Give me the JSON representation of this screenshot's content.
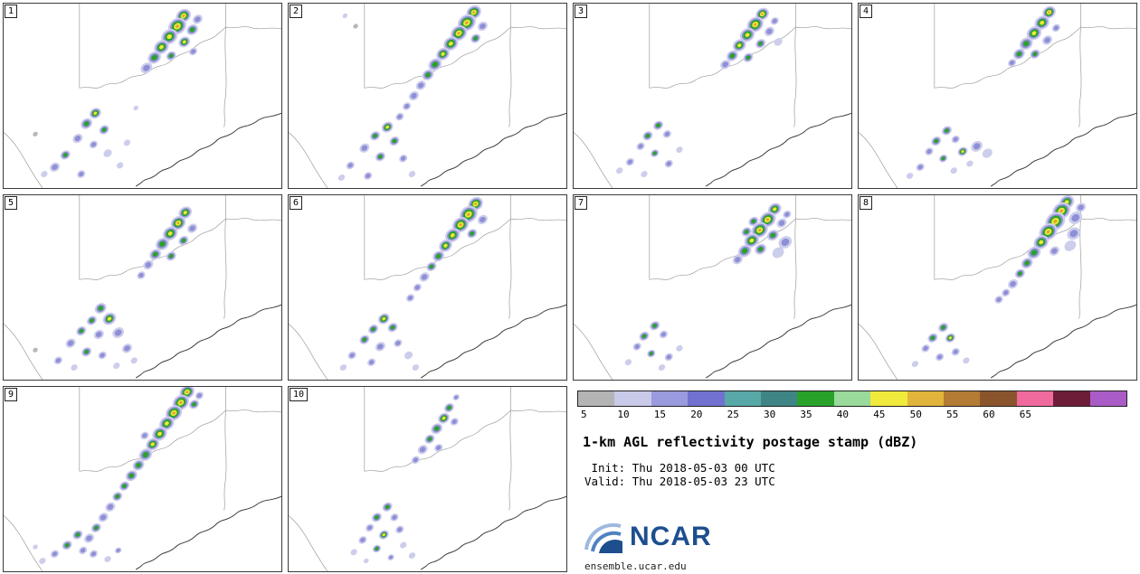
{
  "legend": {
    "title": "1-km AGL reflectivity postage stamp (dBZ)",
    "init_line": " Init: Thu 2018-05-03 00 UTC",
    "valid_line": "Valid: Thu 2018-05-03 23 UTC",
    "logo_text": "NCAR",
    "site_url": "ensemble.ucar.edu",
    "colorbar": {
      "units": "dBZ",
      "tick_labels": [
        "5",
        "10",
        "15",
        "20",
        "25",
        "30",
        "35",
        "40",
        "45",
        "50",
        "55",
        "60",
        "65"
      ],
      "colors": [
        "#b4b4b4",
        "#c9c9e9",
        "#9a9ade",
        "#7171d1",
        "#58a8a8",
        "#408585",
        "#2aa22a",
        "#9ada9a",
        "#f0ea3d",
        "#e1b43b",
        "#b37b33",
        "#8a552c",
        "#f06a9e",
        "#6e1d38",
        "#aa5cc6"
      ]
    }
  },
  "map": {
    "state_line_color": "#9a9a9a",
    "coast_color": "#3a3a3a",
    "cell_ramp": {
      "0": [
        "#b8b8b8"
      ],
      "1": [
        "#cdcdec"
      ],
      "2": [
        "#cdcdec",
        "#8f8fd8"
      ],
      "3": [
        "#cdcdec",
        "#8f8fd8",
        "#2aa22a"
      ],
      "4": [
        "#cdcdec",
        "#8f8fd8",
        "#2aa22a",
        "#eee63c"
      ],
      "5": [
        "#cdcdec",
        "#8f8fd8",
        "#2aa22a",
        "#eee63c",
        "#dfa43a"
      ]
    }
  },
  "panels": [
    {
      "id": "1",
      "cells": [
        [
          204,
          14,
          9,
          5
        ],
        [
          197,
          26,
          11,
          5
        ],
        [
          188,
          38,
          10,
          4
        ],
        [
          179,
          50,
          9,
          4
        ],
        [
          171,
          62,
          8,
          3
        ],
        [
          190,
          60,
          6,
          3
        ],
        [
          205,
          44,
          7,
          4
        ],
        [
          214,
          30,
          7,
          3
        ],
        [
          220,
          18,
          6,
          2
        ],
        [
          162,
          74,
          7,
          2
        ],
        [
          215,
          55,
          5,
          2
        ],
        [
          104,
          126,
          7,
          4
        ],
        [
          94,
          138,
          7,
          3
        ],
        [
          114,
          145,
          6,
          3
        ],
        [
          84,
          155,
          6,
          2
        ],
        [
          102,
          162,
          5,
          2
        ],
        [
          70,
          174,
          6,
          3
        ],
        [
          58,
          188,
          6,
          2
        ],
        [
          118,
          172,
          5,
          1
        ],
        [
          132,
          186,
          4,
          1
        ],
        [
          46,
          196,
          4,
          1
        ],
        [
          88,
          196,
          5,
          2
        ],
        [
          140,
          160,
          4,
          1
        ],
        [
          36,
          150,
          3,
          0
        ],
        [
          150,
          120,
          3,
          1
        ]
      ]
    },
    {
      "id": "2",
      "cells": [
        [
          210,
          10,
          9,
          5
        ],
        [
          202,
          22,
          11,
          5
        ],
        [
          193,
          34,
          10,
          5
        ],
        [
          184,
          46,
          9,
          4
        ],
        [
          175,
          58,
          8,
          4
        ],
        [
          166,
          70,
          8,
          3
        ],
        [
          158,
          82,
          7,
          3
        ],
        [
          150,
          94,
          6,
          2
        ],
        [
          142,
          106,
          6,
          2
        ],
        [
          134,
          118,
          5,
          2
        ],
        [
          126,
          130,
          5,
          2
        ],
        [
          212,
          40,
          6,
          3
        ],
        [
          220,
          26,
          6,
          2
        ],
        [
          112,
          142,
          7,
          4
        ],
        [
          98,
          152,
          6,
          3
        ],
        [
          120,
          158,
          6,
          3
        ],
        [
          86,
          166,
          6,
          2
        ],
        [
          104,
          176,
          6,
          3
        ],
        [
          70,
          186,
          5,
          2
        ],
        [
          130,
          178,
          5,
          2
        ],
        [
          90,
          198,
          5,
          2
        ],
        [
          140,
          196,
          4,
          1
        ],
        [
          60,
          200,
          4,
          1
        ],
        [
          64,
          14,
          3,
          1
        ],
        [
          76,
          26,
          3,
          0
        ]
      ]
    },
    {
      "id": "3",
      "cells": [
        [
          214,
          12,
          8,
          5
        ],
        [
          206,
          24,
          10,
          5
        ],
        [
          197,
          36,
          9,
          4
        ],
        [
          188,
          48,
          8,
          4
        ],
        [
          180,
          60,
          7,
          3
        ],
        [
          198,
          62,
          6,
          3
        ],
        [
          212,
          46,
          6,
          3
        ],
        [
          222,
          32,
          6,
          2
        ],
        [
          228,
          20,
          5,
          2
        ],
        [
          172,
          70,
          6,
          2
        ],
        [
          232,
          44,
          5,
          1
        ],
        [
          96,
          140,
          6,
          3
        ],
        [
          84,
          152,
          6,
          3
        ],
        [
          106,
          150,
          5,
          2
        ],
        [
          76,
          164,
          5,
          2
        ],
        [
          92,
          172,
          5,
          3
        ],
        [
          64,
          182,
          5,
          2
        ],
        [
          108,
          184,
          5,
          2
        ],
        [
          80,
          196,
          4,
          1
        ],
        [
          120,
          168,
          4,
          1
        ],
        [
          52,
          192,
          4,
          1
        ]
      ]
    },
    {
      "id": "4",
      "cells": [
        [
          216,
          10,
          8,
          5
        ],
        [
          208,
          22,
          9,
          4
        ],
        [
          199,
          34,
          9,
          4
        ],
        [
          190,
          46,
          8,
          3
        ],
        [
          182,
          58,
          7,
          3
        ],
        [
          200,
          58,
          6,
          3
        ],
        [
          214,
          42,
          6,
          2
        ],
        [
          224,
          28,
          5,
          2
        ],
        [
          174,
          68,
          5,
          2
        ],
        [
          100,
          146,
          6,
          3
        ],
        [
          88,
          158,
          6,
          3
        ],
        [
          110,
          156,
          5,
          2
        ],
        [
          80,
          170,
          5,
          2
        ],
        [
          96,
          178,
          5,
          3
        ],
        [
          118,
          170,
          6,
          4
        ],
        [
          134,
          164,
          7,
          2
        ],
        [
          146,
          172,
          6,
          1
        ],
        [
          70,
          188,
          5,
          2
        ],
        [
          108,
          192,
          4,
          1
        ],
        [
          126,
          184,
          4,
          1
        ],
        [
          58,
          198,
          4,
          1
        ]
      ]
    },
    {
      "id": "5",
      "cells": [
        [
          206,
          20,
          8,
          4
        ],
        [
          198,
          32,
          9,
          5
        ],
        [
          189,
          44,
          9,
          4
        ],
        [
          180,
          56,
          8,
          3
        ],
        [
          172,
          68,
          7,
          3
        ],
        [
          190,
          70,
          6,
          3
        ],
        [
          204,
          52,
          6,
          3
        ],
        [
          214,
          38,
          6,
          2
        ],
        [
          164,
          80,
          6,
          2
        ],
        [
          156,
          92,
          5,
          2
        ],
        [
          110,
          130,
          7,
          3
        ],
        [
          120,
          142,
          8,
          4
        ],
        [
          100,
          144,
          6,
          3
        ],
        [
          88,
          156,
          6,
          3
        ],
        [
          108,
          160,
          6,
          2
        ],
        [
          130,
          158,
          7,
          2
        ],
        [
          76,
          170,
          6,
          2
        ],
        [
          94,
          180,
          6,
          3
        ],
        [
          112,
          184,
          5,
          2
        ],
        [
          140,
          176,
          6,
          2
        ],
        [
          62,
          190,
          5,
          2
        ],
        [
          80,
          198,
          4,
          1
        ],
        [
          128,
          196,
          4,
          1
        ],
        [
          148,
          190,
          4,
          1
        ],
        [
          36,
          178,
          3,
          0
        ]
      ]
    },
    {
      "id": "6",
      "cells": [
        [
          212,
          10,
          9,
          5
        ],
        [
          204,
          22,
          11,
          5
        ],
        [
          195,
          34,
          10,
          5
        ],
        [
          186,
          46,
          9,
          4
        ],
        [
          178,
          58,
          8,
          4
        ],
        [
          170,
          70,
          7,
          3
        ],
        [
          162,
          82,
          6,
          3
        ],
        [
          154,
          94,
          6,
          2
        ],
        [
          146,
          106,
          5,
          2
        ],
        [
          208,
          44,
          6,
          3
        ],
        [
          220,
          28,
          6,
          2
        ],
        [
          138,
          118,
          5,
          2
        ],
        [
          108,
          142,
          7,
          4
        ],
        [
          96,
          154,
          6,
          3
        ],
        [
          118,
          152,
          6,
          3
        ],
        [
          86,
          166,
          6,
          3
        ],
        [
          104,
          174,
          6,
          2
        ],
        [
          124,
          170,
          5,
          2
        ],
        [
          72,
          184,
          5,
          2
        ],
        [
          94,
          192,
          5,
          2
        ],
        [
          136,
          184,
          5,
          1
        ],
        [
          62,
          198,
          4,
          1
        ],
        [
          144,
          198,
          4,
          1
        ]
      ]
    },
    {
      "id": "7",
      "cells": [
        [
          228,
          16,
          8,
          4
        ],
        [
          220,
          28,
          10,
          5
        ],
        [
          211,
          40,
          10,
          5
        ],
        [
          202,
          52,
          9,
          4
        ],
        [
          194,
          64,
          8,
          3
        ],
        [
          212,
          62,
          7,
          3
        ],
        [
          226,
          46,
          7,
          3
        ],
        [
          236,
          32,
          6,
          2
        ],
        [
          186,
          74,
          6,
          2
        ],
        [
          242,
          22,
          5,
          2
        ],
        [
          204,
          30,
          6,
          3
        ],
        [
          196,
          42,
          6,
          3
        ],
        [
          240,
          54,
          8,
          2
        ],
        [
          232,
          66,
          7,
          1
        ],
        [
          92,
          150,
          6,
          3
        ],
        [
          80,
          162,
          6,
          3
        ],
        [
          102,
          160,
          5,
          2
        ],
        [
          72,
          174,
          5,
          2
        ],
        [
          88,
          182,
          5,
          3
        ],
        [
          108,
          186,
          5,
          2
        ],
        [
          62,
          192,
          4,
          1
        ],
        [
          120,
          176,
          4,
          1
        ],
        [
          100,
          198,
          4,
          1
        ]
      ]
    },
    {
      "id": "8",
      "cells": [
        [
          236,
          8,
          9,
          4
        ],
        [
          230,
          18,
          11,
          5
        ],
        [
          223,
          30,
          12,
          5
        ],
        [
          215,
          42,
          11,
          5
        ],
        [
          207,
          54,
          9,
          4
        ],
        [
          199,
          66,
          8,
          3
        ],
        [
          191,
          78,
          7,
          3
        ],
        [
          183,
          90,
          6,
          3
        ],
        [
          175,
          102,
          6,
          2
        ],
        [
          167,
          112,
          5,
          2
        ],
        [
          159,
          120,
          5,
          2
        ],
        [
          246,
          26,
          8,
          2
        ],
        [
          244,
          44,
          8,
          2
        ],
        [
          240,
          58,
          7,
          1
        ],
        [
          222,
          64,
          6,
          2
        ],
        [
          252,
          14,
          6,
          2
        ],
        [
          96,
          152,
          6,
          3
        ],
        [
          84,
          164,
          6,
          3
        ],
        [
          104,
          164,
          6,
          4
        ],
        [
          76,
          176,
          5,
          2
        ],
        [
          92,
          186,
          5,
          2
        ],
        [
          110,
          180,
          5,
          2
        ],
        [
          64,
          194,
          4,
          1
        ],
        [
          122,
          190,
          4,
          1
        ]
      ]
    },
    {
      "id": "9",
      "cells": [
        [
          208,
          6,
          9,
          5
        ],
        [
          201,
          18,
          10,
          5
        ],
        [
          193,
          30,
          10,
          5
        ],
        [
          185,
          42,
          9,
          4
        ],
        [
          177,
          54,
          9,
          4
        ],
        [
          169,
          66,
          8,
          4
        ],
        [
          161,
          78,
          8,
          3
        ],
        [
          153,
          90,
          7,
          3
        ],
        [
          145,
          102,
          7,
          3
        ],
        [
          137,
          114,
          6,
          3
        ],
        [
          129,
          126,
          6,
          3
        ],
        [
          121,
          138,
          6,
          2
        ],
        [
          113,
          150,
          6,
          2
        ],
        [
          105,
          162,
          6,
          3
        ],
        [
          97,
          174,
          6,
          2
        ],
        [
          216,
          20,
          6,
          3
        ],
        [
          222,
          10,
          5,
          2
        ],
        [
          160,
          56,
          5,
          2
        ],
        [
          84,
          170,
          6,
          3
        ],
        [
          72,
          182,
          6,
          3
        ],
        [
          90,
          188,
          5,
          2
        ],
        [
          58,
          192,
          5,
          2
        ],
        [
          102,
          192,
          5,
          2
        ],
        [
          44,
          200,
          4,
          1
        ],
        [
          118,
          198,
          4,
          1
        ],
        [
          36,
          184,
          3,
          1
        ],
        [
          130,
          188,
          4,
          2
        ]
      ]
    },
    {
      "id": "10",
      "cells": [
        [
          182,
          24,
          6,
          3
        ],
        [
          176,
          36,
          7,
          4
        ],
        [
          168,
          48,
          7,
          3
        ],
        [
          160,
          60,
          6,
          3
        ],
        [
          152,
          72,
          6,
          2
        ],
        [
          170,
          70,
          5,
          2
        ],
        [
          188,
          40,
          5,
          2
        ],
        [
          144,
          84,
          5,
          2
        ],
        [
          190,
          12,
          4,
          2
        ],
        [
          112,
          138,
          6,
          3
        ],
        [
          100,
          150,
          6,
          3
        ],
        [
          120,
          150,
          5,
          2
        ],
        [
          92,
          162,
          5,
          2
        ],
        [
          108,
          170,
          6,
          4
        ],
        [
          126,
          164,
          5,
          2
        ],
        [
          84,
          176,
          5,
          2
        ],
        [
          100,
          186,
          5,
          3
        ],
        [
          130,
          182,
          4,
          1
        ],
        [
          116,
          196,
          4,
          2
        ],
        [
          74,
          190,
          4,
          1
        ],
        [
          140,
          194,
          4,
          1
        ],
        [
          88,
          200,
          3,
          1
        ]
      ]
    }
  ]
}
